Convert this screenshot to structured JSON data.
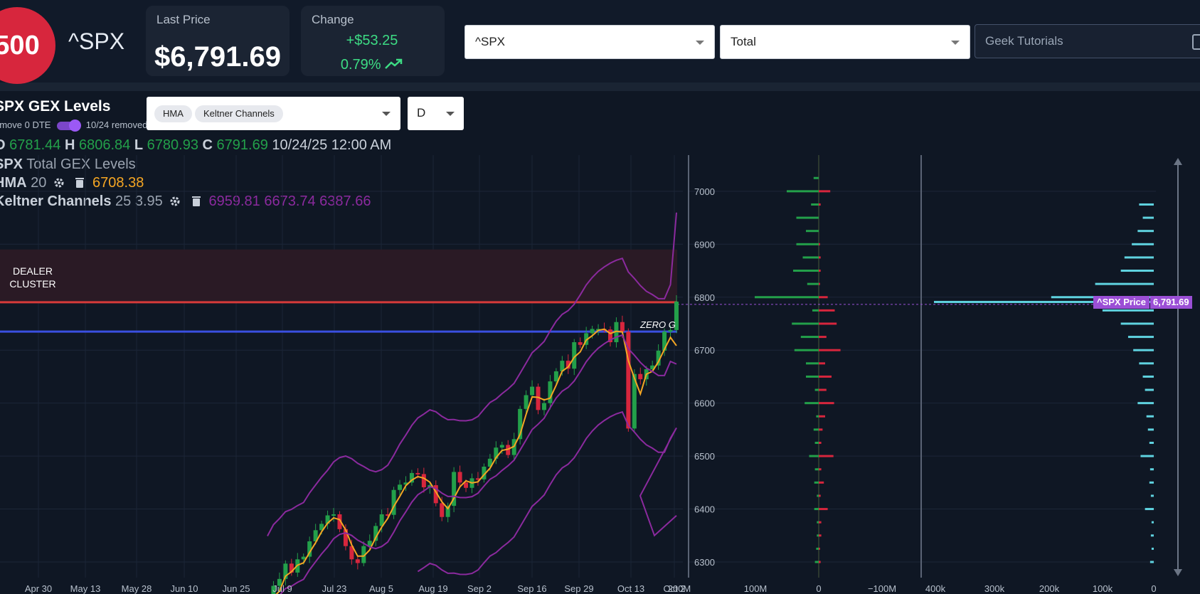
{
  "header": {
    "logo_text": "500",
    "ticker": "^SPX",
    "last_price_label": "Last Price",
    "last_price": "$6,791.69",
    "change_label": "Change",
    "change_amount": "+$53.25",
    "change_percent": "0.79%",
    "symbol_select": "^SPX",
    "type_select": "Total",
    "search_value": "Geek Tutorials"
  },
  "panel": {
    "title": "SPX GEX Levels",
    "remove_dte_label": "emove 0 DTE",
    "remove_dte_status": "10/24 removed",
    "indicator_chips": [
      "HMA",
      "Keltner Channels"
    ],
    "period": "D"
  },
  "ohlc": {
    "o_label": "O",
    "o": "6781.44",
    "h_label": "H",
    "h": "6806.84",
    "l_label": "L",
    "l": "6780.93",
    "c_label": "C",
    "c": "6791.69",
    "datetime": "10/24/25 12:00 AM"
  },
  "legend": {
    "series_sym": "SPX",
    "series_name": "Total GEX Levels",
    "hma_name": "HMA",
    "hma_param": "20",
    "hma_value": "6708.38",
    "kc_name": "Keltner Channels",
    "kc_params": "25 3.95",
    "kc_values": "6959.81 6673.74 6387.66"
  },
  "annotations": {
    "dealer_cluster": [
      "DEALER",
      "CLUSTER"
    ],
    "zero_gamma": "ZERO G",
    "price_tag": "^SPX Price",
    "price_value": "6,791.69"
  },
  "colors": {
    "up": "#23a04a",
    "down": "#d7263d",
    "hma": "#f5a623",
    "keltner": "#8b2a9e",
    "zero_gamma_line": "#3a4fe0",
    "price_line": "#d63a3a",
    "volume_bars": "#5fd3e0",
    "accent": "#9b4fd6"
  },
  "chart_data": {
    "type": "candlestick",
    "x_tick_labels": [
      "Apr 30",
      "May 13",
      "May 28",
      "Jun 10",
      "Jun 25",
      "Jul 9",
      "Jul 23",
      "Aug 5",
      "Aug 19",
      "Sep 2",
      "Sep 16",
      "Sep 29",
      "Oct 13",
      "Oct 2"
    ],
    "y_tick_labels": [
      "7000",
      "6900",
      "6800",
      "6700",
      "6600",
      "6500",
      "6400",
      "6300"
    ],
    "ylim": [
      6272,
      7050
    ],
    "dealer_cluster_range": [
      6790,
      6890
    ],
    "price_level": 6791.69,
    "zero_gamma_level": 6735,
    "hma_last": 6708.38,
    "keltner_last": {
      "upper": 6959.81,
      "middle": 6673.74,
      "lower": 6387.66
    },
    "closes": [
      6212,
      6255,
      6268,
      6297,
      6280,
      6305,
      6310,
      6339,
      6360,
      6372,
      6388,
      6390,
      6362,
      6330,
      6305,
      6298,
      6330,
      6340,
      6368,
      6390,
      6389,
      6436,
      6446,
      6450,
      6468,
      6466,
      6441,
      6445,
      6411,
      6385,
      6406,
      6470,
      6450,
      6440,
      6458,
      6456,
      6480,
      6495,
      6516,
      6521,
      6502,
      6532,
      6589,
      6615,
      6631,
      6587,
      6600,
      6641,
      6660,
      6680,
      6665,
      6715,
      6710,
      6732,
      6740,
      6740,
      6739,
      6715,
      6753,
      6735,
      6552,
      6655,
      6645,
      6664,
      6671,
      6699,
      6735,
      6738,
      6791.69
    ],
    "gex_chart": {
      "x_tick_labels": [
        "200M",
        "100M",
        "0",
        "−100M"
      ],
      "levels": [
        7025,
        7000,
        6975,
        6950,
        6925,
        6900,
        6875,
        6850,
        6825,
        6800,
        6775,
        6750,
        6725,
        6700,
        6675,
        6650,
        6625,
        6600,
        6575,
        6550,
        6525,
        6500,
        6475,
        6450,
        6425,
        6400,
        6375,
        6350,
        6325,
        6300
      ],
      "positive_gex_M": [
        8,
        50,
        12,
        35,
        20,
        35,
        25,
        40,
        18,
        100,
        10,
        42,
        28,
        38,
        20,
        20,
        6,
        22,
        4,
        8,
        6,
        15,
        6,
        7,
        3,
        7,
        3,
        3,
        4,
        6
      ],
      "negative_gex_M": [
        0,
        18,
        3,
        0,
        0,
        2,
        3,
        3,
        2,
        14,
        25,
        28,
        12,
        34,
        10,
        20,
        12,
        24,
        10,
        6,
        4,
        23,
        4,
        8,
        3,
        14,
        4,
        4,
        2,
        3
      ]
    },
    "volume_profile": {
      "x_tick_labels": [
        "400k",
        "300k",
        "200k",
        "100k",
        "0"
      ],
      "levels": [
        6975,
        6950,
        6925,
        6900,
        6875,
        6850,
        6825,
        6800,
        6791,
        6775,
        6750,
        6725,
        6700,
        6675,
        6650,
        6625,
        6600,
        6575,
        6550,
        6525,
        6500,
        6475,
        6450,
        6425,
        6400,
        6375,
        6350,
        6325,
        6300
      ],
      "values_k": [
        20,
        15,
        22,
        30,
        40,
        45,
        80,
        140,
        300,
        70,
        45,
        35,
        28,
        20,
        15,
        12,
        22,
        10,
        8,
        6,
        18,
        5,
        6,
        4,
        12,
        3,
        4,
        3,
        5
      ]
    }
  }
}
